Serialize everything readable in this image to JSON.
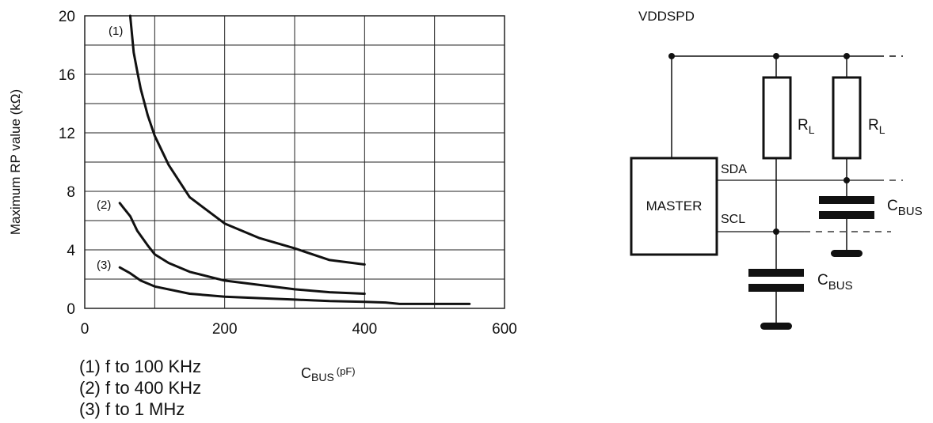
{
  "chart_data": {
    "type": "line",
    "xlabel": {
      "main": "C",
      "sub": "BUS",
      "unit": "(pF)"
    },
    "ylabel": "Maximum RP value (kΩ)",
    "xlim": [
      0,
      600
    ],
    "ylim": [
      0,
      20
    ],
    "x_ticks": [
      "0",
      "200",
      "400",
      "600"
    ],
    "y_ticks": [
      "0",
      "4",
      "8",
      "12",
      "16",
      "20"
    ],
    "grid": true,
    "series": [
      {
        "name": "(1)",
        "x": [
          65,
          70,
          75,
          80,
          90,
          100,
          120,
          150,
          200,
          250,
          300,
          350,
          400
        ],
        "y": [
          20.0,
          17.5,
          16.2,
          15.0,
          13.2,
          11.8,
          9.8,
          7.6,
          5.8,
          4.8,
          4.1,
          3.3,
          3.0
        ]
      },
      {
        "name": "(2)",
        "x": [
          50,
          55,
          65,
          75,
          90,
          100,
          120,
          150,
          200,
          250,
          300,
          350,
          400
        ],
        "y": [
          7.2,
          6.9,
          6.3,
          5.3,
          4.3,
          3.7,
          3.1,
          2.5,
          1.9,
          1.6,
          1.3,
          1.1,
          1.0
        ]
      },
      {
        "name": "(3)",
        "x": [
          50,
          65,
          80,
          100,
          150,
          200,
          250,
          300,
          350,
          400,
          430,
          450,
          500,
          550
        ],
        "y": [
          2.8,
          2.4,
          1.9,
          1.5,
          1.0,
          0.8,
          0.7,
          0.6,
          0.5,
          0.45,
          0.4,
          0.3,
          0.3,
          0.3
        ]
      }
    ],
    "legend_items": [
      "(1)  f to 100 KHz",
      "(2)  f to 400 KHz",
      "(3)  f to 1 MHz"
    ]
  },
  "schematic": {
    "supply": "VDDSPD",
    "master": "MASTER",
    "sda": "SDA",
    "scl": "SCL",
    "resistor": {
      "main": "R",
      "sub": "L"
    },
    "cap": {
      "main": "C",
      "sub": "BUS"
    }
  },
  "colors": {
    "ink": "#111111",
    "grid": "#222222"
  }
}
